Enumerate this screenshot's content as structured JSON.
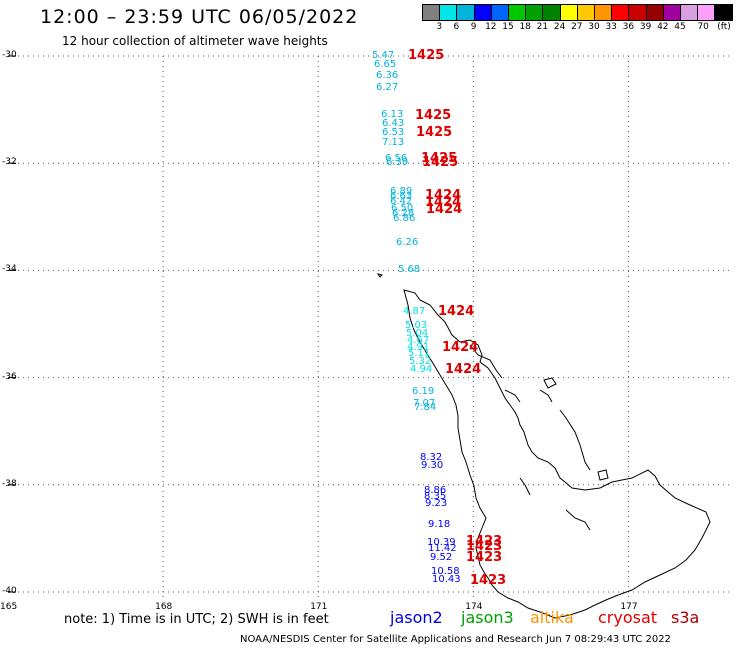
{
  "header": {
    "title": "12:00 – 23:59 UTC 06/05/2022",
    "subtitle": "12 hour collection of altimeter wave heights"
  },
  "scale": {
    "unit": "(ft)",
    "labels": [
      "3",
      "6",
      "9",
      "12",
      "15",
      "18",
      "21",
      "24",
      "27",
      "30",
      "33",
      "36",
      "39",
      "42",
      "45",
      "70"
    ],
    "colors": [
      "#808080",
      "#00e5e5",
      "#00b4dc",
      "#0000ff",
      "#0064ff",
      "#00c800",
      "#00a000",
      "#008200",
      "#ffff00",
      "#ffc800",
      "#ff9600",
      "#ff0000",
      "#c80000",
      "#960000",
      "#a000a0",
      "#d8a0e0",
      "#ffa0ff",
      "#000000"
    ]
  },
  "map": {
    "lon_ticks": [
      165,
      168,
      171,
      174,
      177
    ],
    "lat_ticks": [
      -30,
      -32,
      -34,
      -36,
      -38,
      -40
    ],
    "lon_labels": [
      "165",
      "168",
      "171",
      "174",
      "177"
    ],
    "lat_labels": [
      "-30",
      "-32",
      "-34",
      "-36",
      "-38",
      "-40"
    ]
  },
  "observations": [
    {
      "v": "5.47",
      "c": "#00b4dc"
    },
    {
      "v": "6.65",
      "c": "#00b4dc"
    },
    {
      "v": "6.36",
      "c": "#00b4dc"
    },
    {
      "v": "6.27",
      "c": "#00b4dc"
    },
    {
      "v": "6.13",
      "c": "#00b4dc"
    },
    {
      "v": "6.43",
      "c": "#00b4dc"
    },
    {
      "v": "6.53",
      "c": "#00b4dc"
    },
    {
      "v": "7.13",
      "c": "#00b4dc"
    },
    {
      "v": "6.56",
      "c": "#00b4dc"
    },
    {
      "v": "6.39",
      "c": "#00b4dc"
    },
    {
      "v": "6.89",
      "c": "#00b4dc"
    },
    {
      "v": "6.63",
      "c": "#00b4dc"
    },
    {
      "v": "6.42",
      "c": "#00b4dc"
    },
    {
      "v": "6.50",
      "c": "#00b4dc"
    },
    {
      "v": "6.28",
      "c": "#00b4dc"
    },
    {
      "v": "6.86",
      "c": "#00b4dc"
    },
    {
      "v": "6.26",
      "c": "#00b4dc"
    },
    {
      "v": "5.68",
      "c": "#00b4dc"
    },
    {
      "v": "4.87",
      "c": "#00e5e5"
    },
    {
      "v": "5.03",
      "c": "#00e5e5"
    },
    {
      "v": "5.04",
      "c": "#00e5e5"
    },
    {
      "v": "4.67",
      "c": "#00e5e5"
    },
    {
      "v": "4.91",
      "c": "#00e5e5"
    },
    {
      "v": "5.11",
      "c": "#00e5e5"
    },
    {
      "v": "5.32",
      "c": "#00e5e5"
    },
    {
      "v": "4.94",
      "c": "#00e5e5"
    },
    {
      "v": "6.19",
      "c": "#00b4dc"
    },
    {
      "v": "7.07",
      "c": "#00b4dc"
    },
    {
      "v": "7.84",
      "c": "#00b4dc"
    },
    {
      "v": "8.32",
      "c": "#0000ff"
    },
    {
      "v": "9.30",
      "c": "#0000ff"
    },
    {
      "v": "8.86",
      "c": "#0000ff"
    },
    {
      "v": "8.35",
      "c": "#0000ff"
    },
    {
      "v": "9.23",
      "c": "#0000ff"
    },
    {
      "v": "9.18",
      "c": "#0000ff"
    },
    {
      "v": "10.39",
      "c": "#0000ff"
    },
    {
      "v": "11.42",
      "c": "#0000ff"
    },
    {
      "v": "9.52",
      "c": "#0000ff"
    },
    {
      "v": "10.58",
      "c": "#0000ff"
    },
    {
      "v": "10.43",
      "c": "#0000ff"
    }
  ],
  "pass_times": [
    "1425",
    "1425",
    "1425",
    "1425",
    "1425",
    "1424",
    "1424",
    "1424",
    "1424",
    "1424",
    "1424",
    "1423",
    "1423",
    "1423",
    "1423"
  ],
  "note": "note:  1) Time is in UTC; 2) SWH is in feet",
  "legend": [
    {
      "label": "jason2",
      "color": "#0000dd"
    },
    {
      "label": "jason3",
      "color": "#00a000"
    },
    {
      "label": "altika",
      "color": "#ff9600"
    },
    {
      "label": "cryosat",
      "color": "#dd0000"
    },
    {
      "label": "s3a",
      "color": "#aa0000"
    }
  ],
  "footer": "NOAA/NESDIS Center for Satellite Applications and Research   Jun  7 08:29:43 UTC 2022"
}
